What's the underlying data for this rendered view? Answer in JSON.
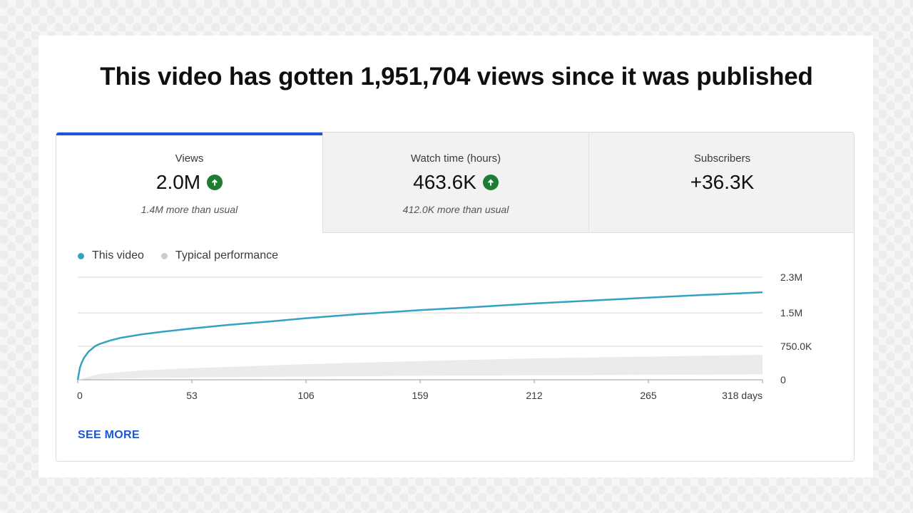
{
  "headline": "This video has gotten 1,951,704 views since it was published",
  "tabs": [
    {
      "label": "Views",
      "value": "2.0M",
      "sub": "1.4M more than usual",
      "trend": "up",
      "selected": true
    },
    {
      "label": "Watch time (hours)",
      "value": "463.6K",
      "sub": "412.0K more than usual",
      "trend": "up",
      "selected": false
    },
    {
      "label": "Subscribers",
      "value": "+36.3K",
      "sub": "",
      "trend": "",
      "selected": false
    }
  ],
  "see_more": "SEE MORE",
  "colors": {
    "accent": "#1a56d6",
    "this_video": "#34a2c3",
    "typical": "#cccccc",
    "trend_up": "#1e7d32"
  },
  "chart_data": {
    "type": "line",
    "title": "",
    "xlabel": "",
    "ylabel": "",
    "xlim": [
      0,
      318
    ],
    "ylim": [
      0,
      2300000
    ],
    "x_ticks": [
      0,
      53,
      106,
      159,
      212,
      265,
      318
    ],
    "x_tick_labels": [
      "0",
      "53",
      "106",
      "159",
      "212",
      "265",
      "318 days"
    ],
    "y_ticks": [
      0,
      750000,
      1500000,
      2300000
    ],
    "y_tick_labels": [
      "0",
      "750.0K",
      "1.5M",
      "2.3M"
    ],
    "y_axis_side": "right",
    "grid": true,
    "legend": {
      "placement": "top-left",
      "entries": [
        "This video",
        "Typical performance"
      ]
    },
    "series": [
      {
        "name": "This video",
        "x": [
          0,
          1,
          2,
          3,
          5,
          8,
          10,
          15,
          20,
          30,
          40,
          53,
          70,
          90,
          106,
          130,
          159,
          185,
          212,
          240,
          265,
          290,
          318
        ],
        "y": [
          0,
          270000,
          400000,
          500000,
          630000,
          750000,
          800000,
          880000,
          940000,
          1020000,
          1080000,
          1150000,
          1230000,
          1310000,
          1380000,
          1470000,
          1560000,
          1630000,
          1710000,
          1780000,
          1840000,
          1900000,
          1960000
        ]
      },
      {
        "name": "Typical performance",
        "band": true,
        "x": [
          0,
          10,
          30,
          53,
          106,
          159,
          212,
          265,
          318
        ],
        "low": [
          0,
          20000,
          40000,
          50000,
          70000,
          90000,
          100000,
          110000,
          120000
        ],
        "high": [
          0,
          130000,
          210000,
          260000,
          350000,
          420000,
          480000,
          520000,
          560000
        ]
      }
    ]
  }
}
